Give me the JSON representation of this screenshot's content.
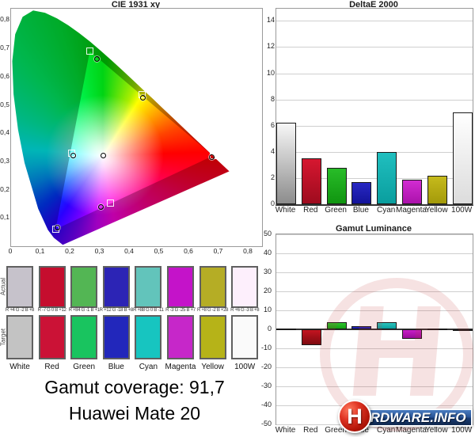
{
  "chart_data": [
    {
      "type": "scatter",
      "title": "CIE 1931 xy",
      "xlim": [
        0,
        0.845
      ],
      "ylim": [
        0,
        0.84
      ],
      "grid": false,
      "x_tick_labels": [
        "0",
        "0,1",
        "0,2",
        "0,3",
        "0,4",
        "0,5",
        "0,6",
        "0,7",
        "0,8"
      ],
      "y_tick_labels": [
        "0,1",
        "0,2",
        "0,3",
        "0,4",
        "0,5",
        "0,6",
        "0,7",
        "0,8"
      ],
      "gamut_triangle_vertices": [
        [
          0.265,
          0.69
        ],
        [
          0.68,
          0.32
        ],
        [
          0.15,
          0.06
        ]
      ],
      "target_squares": [
        {
          "name": "green",
          "x": 0.265,
          "y": 0.69
        },
        {
          "name": "yellow",
          "x": 0.44,
          "y": 0.537
        },
        {
          "name": "cyan",
          "x": 0.205,
          "y": 0.33
        },
        {
          "name": "magenta",
          "x": 0.335,
          "y": 0.153
        },
        {
          "name": "blue",
          "x": 0.15,
          "y": 0.06
        },
        {
          "name": "red",
          "x": 0.68,
          "y": 0.32
        }
      ],
      "actual_circles": [
        {
          "name": "green",
          "x": 0.29,
          "y": 0.662
        },
        {
          "name": "yellow",
          "x": 0.445,
          "y": 0.525
        },
        {
          "name": "cyan",
          "x": 0.208,
          "y": 0.321
        },
        {
          "name": "white",
          "x": 0.31,
          "y": 0.32
        },
        {
          "name": "magenta",
          "x": 0.303,
          "y": 0.14
        },
        {
          "name": "red",
          "x": 0.675,
          "y": 0.314
        },
        {
          "name": "blue",
          "x": 0.155,
          "y": 0.065
        }
      ]
    },
    {
      "type": "bar",
      "title": "DeltaE 2000",
      "categories": [
        "White",
        "Red",
        "Green",
        "Blue",
        "Cyan",
        "Magenta",
        "Yellow",
        "100W"
      ],
      "values": [
        6.2,
        3.5,
        2.8,
        1.7,
        4.0,
        1.9,
        2.2,
        7.0
      ],
      "ylim": [
        0,
        15
      ],
      "y_ticks": [
        0,
        2,
        4,
        6,
        8,
        10,
        12,
        14
      ],
      "grid": true,
      "bar_colors": [
        [
          "#f7f7f7",
          "#8c8c8c"
        ],
        [
          "#d61730",
          "#9e0b1e"
        ],
        [
          "#28bc28",
          "#109510"
        ],
        [
          "#2828c4",
          "#14149a"
        ],
        [
          "#20bfbf",
          "#0a9e9e"
        ],
        [
          "#d22cd2",
          "#ab12ab"
        ],
        [
          "#c6ba1c",
          "#a39a0a"
        ],
        [
          "#ffffff",
          "#dcdcdc"
        ]
      ]
    },
    {
      "type": "bar",
      "title": "Gamut Luminance",
      "categories": [
        "White",
        "Red",
        "Green",
        "Blue",
        "Cyan",
        "Magenta",
        "Yellow",
        "100W"
      ],
      "values": [
        0.4,
        -8.5,
        3.8,
        1.8,
        3.8,
        -5.2,
        0.6,
        -0.3
      ],
      "ylim": [
        -50,
        50
      ],
      "y_ticks": [
        50,
        40,
        30,
        20,
        10,
        0,
        -10,
        -20,
        -30,
        -40,
        -50
      ],
      "grid": true,
      "bar_colors": [
        [
          "#e8e8e8",
          "#9a9a9a"
        ],
        [
          "#c41420",
          "#7d0a10"
        ],
        [
          "#2ec42e",
          "#12a012"
        ],
        [
          "#2828c4",
          "#14149a"
        ],
        [
          "#2cc4bc",
          "#0a9e9e"
        ],
        [
          "#c81ec8",
          "#990d99"
        ],
        [
          "#c6ba1c",
          "#a39a0a"
        ],
        [
          "#f2f2f2",
          "#cccccc"
        ]
      ]
    }
  ],
  "swatches": {
    "side_labels": [
      "Actual",
      "Target"
    ],
    "names": [
      "White",
      "Red",
      "Green",
      "Blue",
      "Cyan",
      "Magenta",
      "Yellow",
      "100W"
    ],
    "actual_colors": [
      "#c6c2cb",
      "#c50d2e",
      "#53b654",
      "#2c24b5",
      "#62c4bb",
      "#c413c9",
      "#b5ad25",
      "#fdeffc"
    ],
    "target_colors": [
      "#c3c3c3",
      "#cb1236",
      "#19c45f",
      "#2227bb",
      "#17c5c0",
      "#c627c9",
      "#b6b318",
      "#fafafa"
    ],
    "delta_labels": [
      "R +4 G -2 B +8",
      "R -7 G 0 B +12",
      "R +84 G -1 B +1",
      "R +12 G -18 B +8",
      "R +88 G 0 B -11",
      "R -3 G -25 B +7",
      "R +8 G -2 B +28",
      "R +6 G -3 B +8"
    ]
  },
  "footer": {
    "gamut_coverage_label": "Gamut coverage: 91,7",
    "device_label": "Huawei Mate 20"
  },
  "logo": {
    "h_letter": "H",
    "wordmark": "ARDWARE.INFO"
  },
  "colors": {
    "watermark_red": "rgba(193,62,62,0.15)",
    "logo_blue": "#1e3f7a",
    "logo_red": "#c0160c"
  }
}
